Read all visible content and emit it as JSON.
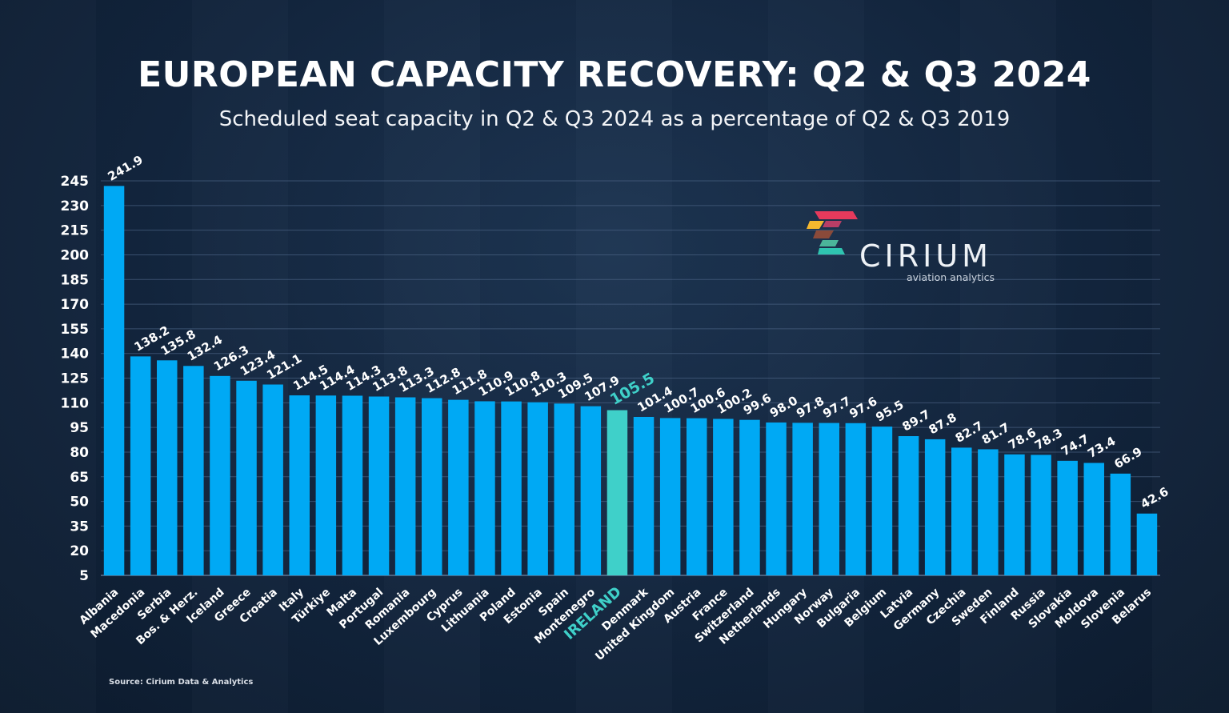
{
  "header": {
    "title": "EUROPEAN CAPACITY RECOVERY: Q2 & Q3 2024",
    "subtitle": "Scheduled seat capacity in Q2 & Q3 2024 as a percentage of Q2 & Q3 2019"
  },
  "logo": {
    "name": "CIRIUM",
    "tagline": "aviation analytics"
  },
  "footer": {
    "source": "Source: Cirium Data & Analytics"
  },
  "colors": {
    "bar": "#00a9f4",
    "highlight_bar": "#3fd0c9",
    "highlight_text": "#3fd0c9",
    "grid": "#4a6383",
    "text": "#ffffff"
  },
  "chart_data": {
    "type": "bar",
    "title": "EUROPEAN CAPACITY RECOVERY: Q2 & Q3 2024",
    "subtitle": "Scheduled seat capacity in Q2 & Q3 2024 as a percentage of Q2 & Q3 2019",
    "xlabel": "",
    "ylabel": "",
    "ylim": [
      5,
      245
    ],
    "yticks": [
      5,
      20,
      35,
      50,
      65,
      80,
      95,
      110,
      125,
      140,
      155,
      170,
      185,
      200,
      215,
      230,
      245
    ],
    "grid": true,
    "highlight": "IRELAND",
    "categories": [
      "Albania",
      "Macedonia",
      "Serbia",
      "Bos. & Herz.",
      "Iceland",
      "Greece",
      "Croatia",
      "Italy",
      "Türkiye",
      "Malta",
      "Portugal",
      "Romania",
      "Luxembourg",
      "Cyprus",
      "Lithuania",
      "Poland",
      "Estonia",
      "Spain",
      "Montenegro",
      "IRELAND",
      "Denmark",
      "United Kingdom",
      "Austria",
      "France",
      "Switzerland",
      "Netherlands",
      "Hungary",
      "Norway",
      "Bulgaria",
      "Belgium",
      "Latvia",
      "Germany",
      "Czechia",
      "Sweden",
      "Finland",
      "Russia",
      "Slovakia",
      "Moldova",
      "Slovenia",
      "Belarus"
    ],
    "values": [
      241.9,
      138.2,
      135.8,
      132.4,
      126.3,
      123.4,
      121.1,
      114.5,
      114.4,
      114.3,
      113.8,
      113.3,
      112.8,
      111.8,
      110.9,
      110.8,
      110.3,
      109.5,
      107.9,
      105.5,
      101.4,
      100.7,
      100.6,
      100.2,
      99.6,
      98.0,
      97.8,
      97.7,
      97.6,
      95.5,
      89.7,
      87.8,
      82.7,
      81.7,
      78.6,
      78.3,
      74.7,
      73.4,
      66.9,
      42.6
    ],
    "labels": [
      "241.9",
      "138.2",
      "135.8",
      "132.4",
      "126.3",
      "123.4",
      "121.1",
      "114.5",
      "114.4",
      "114.3",
      "113.8",
      "113.3",
      "112.8",
      "111.8",
      "110.9",
      "110.8",
      "110.3",
      "109.5",
      "107.9",
      "105.5",
      "101.4",
      "100.7",
      "100.6",
      "100.2",
      "99.6",
      "98.0",
      "97.8",
      "97.7",
      "97.6",
      "95.5",
      "89.7",
      "87.8",
      "82.7",
      "81.7",
      "78.6",
      "78.3",
      "74.7",
      "73.4",
      "66.9",
      "42.6"
    ]
  }
}
